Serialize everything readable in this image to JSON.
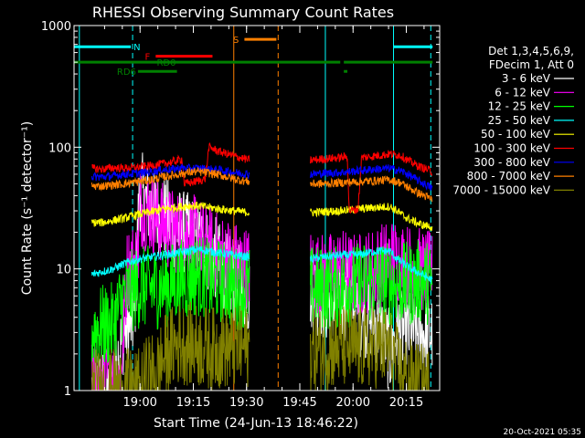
{
  "chart_data": {
    "type": "line",
    "title": "RHESSI Observing Summary Count Rates",
    "xlabel": "Start Time (24-Jun-13 18:46:22)",
    "ylabel": "Count Rate (s⁻¹ detector⁻¹)",
    "yscale": "log",
    "ylim": [
      1,
      1000
    ],
    "xlim": [
      -5,
      98
    ],
    "x_unit": "minutes since 18:46:22",
    "x_ticks": [
      {
        "value": 13.6,
        "label": "19:00"
      },
      {
        "value": 28.6,
        "label": "19:15"
      },
      {
        "value": 43.6,
        "label": "19:30"
      },
      {
        "value": 58.6,
        "label": "19:45"
      },
      {
        "value": 73.6,
        "label": "20:00"
      },
      {
        "value": 88.6,
        "label": "20:15"
      }
    ],
    "y_ticks": [
      {
        "value": 1,
        "label": "1"
      },
      {
        "value": 10,
        "label": "10"
      },
      {
        "value": 100,
        "label": "100"
      },
      {
        "value": 1000,
        "label": "1000"
      }
    ],
    "legend": {
      "position": "right",
      "header": [
        "Det 1,3,4,5,6,9,",
        "FDecim 1, Att 0"
      ]
    },
    "gaps": [
      [
        44.5,
        61.5
      ]
    ],
    "series": [
      {
        "name": "3 - 6 keV",
        "color": "#ffffff",
        "points": [
          [
            0,
            1
          ],
          [
            5,
            1
          ],
          [
            9,
            3
          ],
          [
            12,
            4
          ],
          [
            13.5,
            46
          ],
          [
            15,
            36
          ],
          [
            18,
            30
          ],
          [
            21,
            26
          ],
          [
            23,
            22
          ],
          [
            26,
            20
          ],
          [
            29,
            18
          ],
          [
            32,
            15
          ],
          [
            35,
            12
          ],
          [
            38,
            9
          ],
          [
            40,
            8
          ],
          [
            42,
            7
          ],
          [
            44.5,
            6
          ],
          [
            61.5,
            7
          ],
          [
            64,
            6
          ],
          [
            67,
            5
          ],
          [
            70,
            5
          ],
          [
            72,
            6
          ],
          [
            74,
            5
          ],
          [
            76,
            4
          ],
          [
            79,
            4
          ],
          [
            82,
            3
          ],
          [
            84,
            2
          ],
          [
            86,
            3
          ],
          [
            92,
            3
          ],
          [
            96,
            3
          ]
        ]
      },
      {
        "name": "6 - 12 keV",
        "color": "#ff00ff",
        "points": [
          [
            0,
            1.2
          ],
          [
            8,
            1.2
          ],
          [
            10,
            10
          ],
          [
            13,
            12
          ],
          [
            13.5,
            33
          ],
          [
            16,
            30
          ],
          [
            19,
            25
          ],
          [
            21,
            22
          ],
          [
            24,
            20
          ],
          [
            27,
            19
          ],
          [
            30,
            18
          ],
          [
            33,
            15
          ],
          [
            36,
            13
          ],
          [
            39,
            12
          ],
          [
            41,
            11
          ],
          [
            44.5,
            10
          ],
          [
            61.5,
            10
          ],
          [
            64,
            9
          ],
          [
            67,
            9
          ],
          [
            70,
            10
          ],
          [
            73,
            9
          ],
          [
            76,
            9
          ],
          [
            79,
            10
          ],
          [
            82,
            11
          ],
          [
            85,
            12
          ],
          [
            88,
            11
          ],
          [
            92,
            10
          ],
          [
            96,
            9
          ]
        ]
      },
      {
        "name": "12 - 25 keV",
        "color": "#00ff00",
        "points": [
          [
            0,
            3.2
          ],
          [
            6,
            3.5
          ],
          [
            9,
            6
          ],
          [
            13,
            7
          ],
          [
            18,
            7
          ],
          [
            22,
            7.5
          ],
          [
            25,
            8
          ],
          [
            28,
            8.5
          ],
          [
            30,
            9
          ],
          [
            33,
            8
          ],
          [
            36,
            8
          ],
          [
            40,
            7
          ],
          [
            44.5,
            7
          ],
          [
            61.5,
            7
          ],
          [
            65,
            7
          ],
          [
            70,
            7
          ],
          [
            75,
            7.5
          ],
          [
            80,
            8
          ],
          [
            84,
            7.5
          ],
          [
            86,
            7.5
          ],
          [
            90,
            7.5
          ],
          [
            93,
            8
          ],
          [
            96,
            7.5
          ]
        ]
      },
      {
        "name": "25 - 50 keV",
        "color": "#00ffff",
        "points": [
          [
            0,
            9
          ],
          [
            3,
            9.5
          ],
          [
            6,
            10
          ],
          [
            9,
            11
          ],
          [
            13,
            12
          ],
          [
            17,
            12.5
          ],
          [
            20,
            13
          ],
          [
            24,
            13.5
          ],
          [
            27,
            14
          ],
          [
            30,
            14.5
          ],
          [
            33,
            14
          ],
          [
            36,
            13.5
          ],
          [
            40,
            13
          ],
          [
            44.5,
            12.5
          ],
          [
            61.5,
            12
          ],
          [
            65,
            12.5
          ],
          [
            70,
            13
          ],
          [
            75,
            13
          ],
          [
            80,
            14
          ],
          [
            84,
            14
          ],
          [
            86,
            12
          ],
          [
            90,
            10
          ],
          [
            93,
            9
          ],
          [
            96,
            8
          ]
        ]
      },
      {
        "name": "50 - 100 keV",
        "color": "#ffff00",
        "points": [
          [
            0,
            24
          ],
          [
            3,
            24
          ],
          [
            6,
            25
          ],
          [
            9,
            26
          ],
          [
            13,
            28
          ],
          [
            17,
            29.5
          ],
          [
            20,
            31
          ],
          [
            24,
            32
          ],
          [
            27,
            33
          ],
          [
            30,
            33
          ],
          [
            33,
            32
          ],
          [
            36,
            31
          ],
          [
            40,
            30
          ],
          [
            44.5,
            29
          ],
          [
            61.5,
            29
          ],
          [
            65,
            29.5
          ],
          [
            70,
            30
          ],
          [
            75,
            31
          ],
          [
            80,
            32
          ],
          [
            84,
            32.5
          ],
          [
            86,
            30
          ],
          [
            88,
            27
          ],
          [
            90,
            25
          ],
          [
            93,
            23
          ],
          [
            96,
            22
          ]
        ]
      },
      {
        "name": "100 - 300 keV",
        "color": "#ff0000",
        "points": [
          [
            0,
            67
          ],
          [
            3,
            66
          ],
          [
            6,
            68
          ],
          [
            9,
            67
          ],
          [
            12,
            68
          ],
          [
            16,
            70
          ],
          [
            20,
            73
          ],
          [
            23,
            76
          ],
          [
            25.5,
            80
          ],
          [
            26,
            50
          ],
          [
            29,
            52
          ],
          [
            32,
            55
          ],
          [
            33,
            100
          ],
          [
            36,
            92
          ],
          [
            40,
            85
          ],
          [
            44.5,
            78
          ],
          [
            61.5,
            78
          ],
          [
            65,
            80
          ],
          [
            70,
            82
          ],
          [
            72,
            84
          ],
          [
            72.5,
            30
          ],
          [
            75,
            31
          ],
          [
            76,
            82
          ],
          [
            80,
            85
          ],
          [
            84,
            88
          ],
          [
            87,
            86
          ],
          [
            89,
            78
          ],
          [
            92,
            70
          ],
          [
            96,
            63
          ]
        ]
      },
      {
        "name": "300 - 800 keV",
        "color": "#0000ff",
        "points": [
          [
            0,
            57
          ],
          [
            3,
            57
          ],
          [
            6,
            58
          ],
          [
            9,
            60
          ],
          [
            13,
            61
          ],
          [
            17,
            63
          ],
          [
            20,
            65
          ],
          [
            23,
            66
          ],
          [
            25.5,
            68
          ],
          [
            27,
            67
          ],
          [
            30,
            67
          ],
          [
            33,
            66
          ],
          [
            36,
            65
          ],
          [
            40,
            62
          ],
          [
            44.5,
            60
          ],
          [
            61.5,
            60
          ],
          [
            65,
            61
          ],
          [
            70,
            62
          ],
          [
            75,
            64
          ],
          [
            80,
            66
          ],
          [
            84,
            67
          ],
          [
            87,
            64
          ],
          [
            89,
            60
          ],
          [
            92,
            53
          ],
          [
            96,
            46
          ]
        ]
      },
      {
        "name": "800 - 7000 keV",
        "color": "#ff8000",
        "points": [
          [
            0,
            48
          ],
          [
            3,
            48
          ],
          [
            6,
            49
          ],
          [
            9,
            50
          ],
          [
            13,
            52
          ],
          [
            17,
            54
          ],
          [
            20,
            57
          ],
          [
            23,
            59
          ],
          [
            26,
            61
          ],
          [
            29,
            63
          ],
          [
            32,
            62
          ],
          [
            35,
            60
          ],
          [
            38,
            57
          ],
          [
            41,
            54
          ],
          [
            44.5,
            52
          ],
          [
            61.5,
            50
          ],
          [
            65,
            50
          ],
          [
            70,
            51
          ],
          [
            75,
            52
          ],
          [
            80,
            53
          ],
          [
            84,
            54
          ],
          [
            87,
            51
          ],
          [
            89,
            47
          ],
          [
            92,
            42
          ],
          [
            96,
            37
          ]
        ]
      },
      {
        "name": "7000 - 15000 keV",
        "color": "#808000",
        "points": [
          [
            0,
            1
          ],
          [
            14,
            1
          ],
          [
            16,
            1.4
          ],
          [
            18,
            1.3
          ],
          [
            20,
            1.8
          ],
          [
            22,
            2.2
          ],
          [
            25,
            2.5
          ],
          [
            28,
            2.4
          ],
          [
            31,
            2.3
          ],
          [
            34,
            2.2
          ],
          [
            37,
            2.3
          ],
          [
            40,
            2.2
          ],
          [
            43,
            2.3
          ],
          [
            44.5,
            2.2
          ],
          [
            61.5,
            2.1
          ],
          [
            65,
            2.2
          ],
          [
            70,
            2.3
          ],
          [
            75,
            2.2
          ],
          [
            80,
            2.3
          ],
          [
            84,
            2.2
          ],
          [
            86,
            1.6
          ],
          [
            88,
            1.3
          ],
          [
            90,
            1.2
          ],
          [
            96,
            1
          ]
        ]
      }
    ],
    "state_bars": [
      {
        "label": "N",
        "color": "#00ffff",
        "segments": [
          [
            -5,
            11
          ],
          [
            85,
            96
          ]
        ],
        "level": 670
      },
      {
        "label": "F",
        "color": "#ff0000",
        "segments": [
          [
            18,
            34
          ]
        ],
        "level": 560
      },
      {
        "label": "S",
        "color": "#ff8000",
        "segments": [
          [
            43,
            52
          ]
        ],
        "level": 770
      },
      {
        "label": "RD0",
        "color": "#008000",
        "segments": [
          [
            -5,
            70
          ],
          [
            71,
            96
          ]
        ],
        "level": 500
      },
      {
        "label": "RD6",
        "color": "#008000",
        "segments": [
          [
            13,
            24
          ],
          [
            71,
            72
          ]
        ],
        "level": 420
      }
    ],
    "vlines": [
      {
        "x": -3.5,
        "color": "#00ffff",
        "style": "solid"
      },
      {
        "x": 11.5,
        "color": "#00ffff",
        "style": "dashed"
      },
      {
        "x": 40,
        "color": "#ff8000",
        "style": "solid"
      },
      {
        "x": 52.5,
        "color": "#ff8000",
        "style": "dashed"
      },
      {
        "x": 65.8,
        "color": "#00ffff",
        "style": "solid"
      },
      {
        "x": 85,
        "color": "#00ffff",
        "style": "solid"
      },
      {
        "x": 95.5,
        "color": "#00ffff",
        "style": "dashed"
      }
    ],
    "timestamp": "20-Oct-2021 05:35"
  }
}
